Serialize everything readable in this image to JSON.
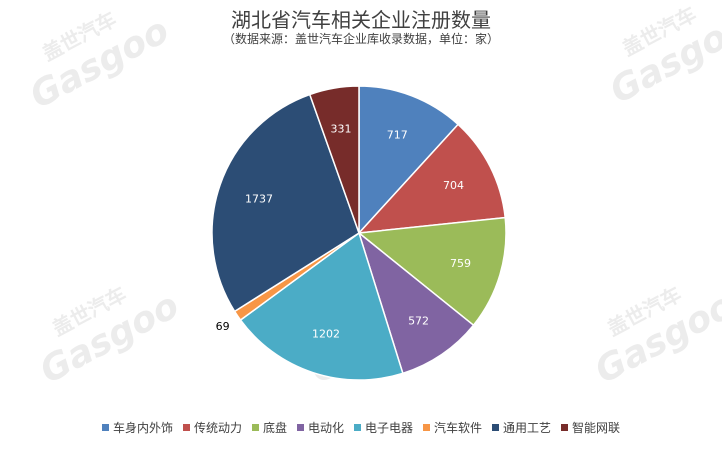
{
  "header": {
    "title": "湖北省汽车相关企业注册数量",
    "subtitle": "（数据来源：盖世汽车企业库收录数据，单位：家）"
  },
  "watermark": {
    "cn": "盖世汽车",
    "en": "Gasgoo"
  },
  "chart_data": {
    "type": "pie",
    "title": "湖北省汽车相关企业注册数量",
    "subtitle": "（数据来源：盖世汽车企业库收录数据，单位：家）",
    "categories": [
      "车身内外饰",
      "传统动力",
      "底盘",
      "电动化",
      "电子电器",
      "汽车软件",
      "通用工艺",
      "智能网联"
    ],
    "values": [
      717,
      704,
      759,
      572,
      1202,
      69,
      1737,
      331
    ],
    "colors": [
      "#4F81BD",
      "#C0504D",
      "#9BBB59",
      "#8064A2",
      "#4BACC6",
      "#F79646",
      "#2C4D75",
      "#772C2A"
    ],
    "legend_position": "bottom",
    "data_labels": true
  }
}
